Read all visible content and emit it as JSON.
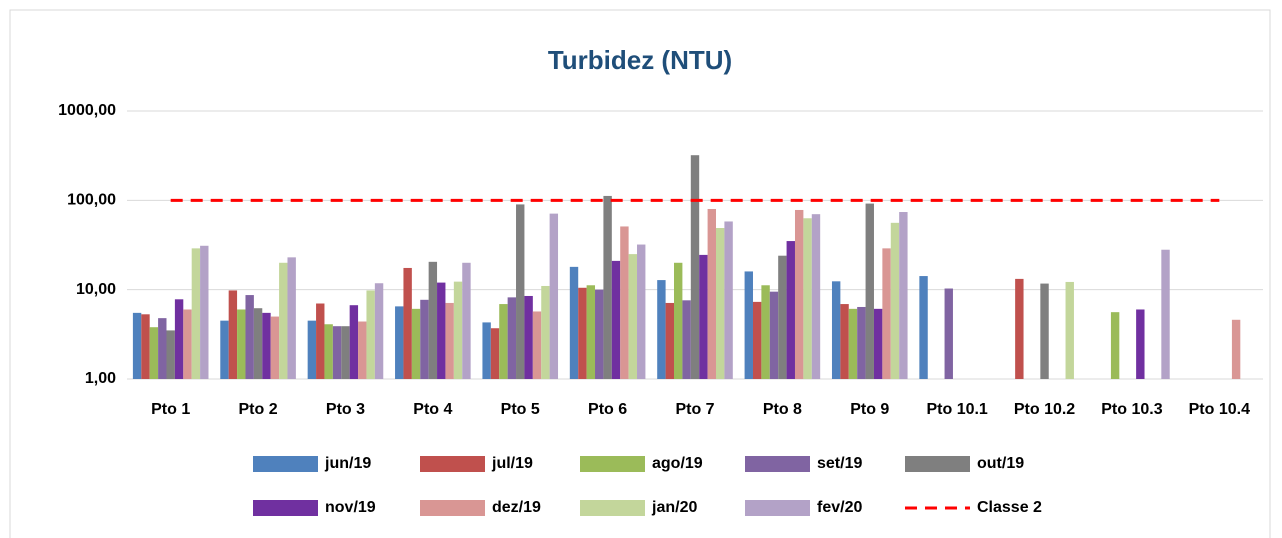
{
  "chart_data": {
    "type": "bar",
    "title": "Turbidez (NTU)",
    "categories": [
      "Pto 1",
      "Pto 2",
      "Pto 3",
      "Pto 4",
      "Pto 5",
      "Pto 6",
      "Pto 7",
      "Pto 8",
      "Pto 9",
      "Pto 10.1",
      "Pto 10.2",
      "Pto 10.3",
      "Pto 10.4"
    ],
    "series": [
      {
        "name": "jun/19",
        "color": "#4f81bd",
        "values": [
          5.5,
          4.5,
          4.5,
          6.5,
          4.3,
          18,
          12.8,
          16,
          12.4,
          14.2,
          null,
          null,
          null
        ]
      },
      {
        "name": "jul/19",
        "color": "#c0504d",
        "values": [
          5.3,
          9.8,
          7.0,
          17.5,
          3.7,
          10.5,
          7.1,
          7.3,
          6.9,
          null,
          13.2,
          null,
          null
        ]
      },
      {
        "name": "ago/19",
        "color": "#9bbb59",
        "values": [
          3.8,
          6.0,
          4.1,
          6.1,
          6.9,
          11.2,
          20,
          11.2,
          6.1,
          null,
          null,
          5.6,
          null
        ]
      },
      {
        "name": "set/19",
        "color": "#8064a2",
        "values": [
          4.8,
          8.7,
          3.9,
          7.7,
          8.2,
          10,
          7.6,
          9.5,
          6.4,
          10.3,
          null,
          null,
          null
        ]
      },
      {
        "name": "out/19",
        "color": "#7f7f7f",
        "values": [
          3.5,
          6.2,
          3.9,
          20.5,
          90,
          112,
          320,
          24,
          92,
          null,
          11.7,
          null,
          null
        ]
      },
      {
        "name": "nov/19",
        "color": "#7030a0",
        "values": [
          7.8,
          5.5,
          6.7,
          12,
          8.5,
          21,
          24.5,
          35,
          6.1,
          null,
          null,
          6.0,
          null
        ]
      },
      {
        "name": "dez/19",
        "color": "#d99694",
        "values": [
          6.0,
          5.0,
          4.4,
          7.1,
          5.7,
          51,
          80,
          78,
          29,
          null,
          null,
          null,
          4.6
        ]
      },
      {
        "name": "jan/20",
        "color": "#c3d69b",
        "values": [
          29,
          20,
          9.8,
          12.3,
          11,
          25,
          49,
          63,
          56,
          null,
          12.2,
          null,
          null
        ]
      },
      {
        "name": "fev/20",
        "color": "#b3a2c7",
        "values": [
          31,
          23,
          11.8,
          20,
          71,
          32,
          58,
          70,
          74,
          null,
          null,
          28,
          null
        ]
      }
    ],
    "lines": [
      {
        "name": "Classe 2",
        "color": "#ff0000",
        "dashed": true,
        "values": [
          100,
          100,
          100,
          100,
          100,
          100,
          100,
          100,
          100,
          100,
          100,
          100,
          100
        ]
      }
    ],
    "ylim": [
      1,
      1000
    ],
    "log_scale": true,
    "yticks": [
      {
        "value": 1,
        "label": "1,00"
      },
      {
        "value": 10,
        "label": "10,00"
      },
      {
        "value": 100,
        "label": "100,00"
      },
      {
        "value": 1000,
        "label": "1000,00"
      }
    ],
    "grid": true,
    "legend": "bottom"
  }
}
